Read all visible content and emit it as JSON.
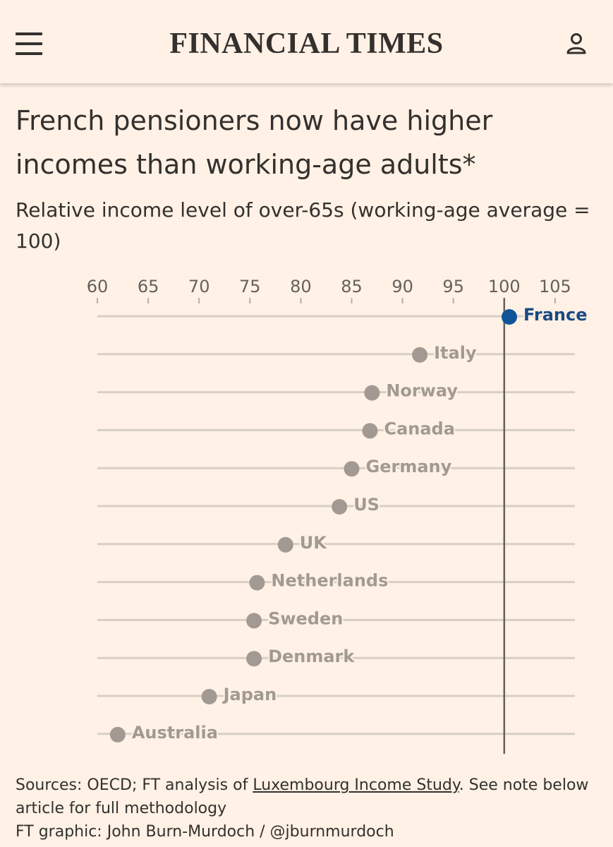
{
  "header": {
    "masthead": "FINANCIAL TIMES",
    "menu_icon": "hamburger-menu-icon",
    "account_icon": "user-account-icon"
  },
  "headline": "French pensioners now have higher incomes than working-age adults*",
  "subtitle": "Relative income level of over-65s (working-age average = 100)",
  "chart_data": {
    "type": "scatter",
    "title": "French pensioners now have higher incomes than working-age adults*",
    "subtitle": "Relative income level of over-65s (working-age average = 100)",
    "x_ticks": [
      60,
      65,
      70,
      75,
      80,
      85,
      90,
      95,
      100,
      105
    ],
    "xlim": [
      60,
      107
    ],
    "reference_line": 100,
    "grid": true,
    "highlight_color": "#0f5499",
    "point_color": "#a29a92",
    "points": [
      {
        "label": "France",
        "value": 100.5,
        "highlight": true
      },
      {
        "label": "Italy",
        "value": 91.7
      },
      {
        "label": "Norway",
        "value": 87.0
      },
      {
        "label": "Canada",
        "value": 86.8
      },
      {
        "label": "Germany",
        "value": 85.0
      },
      {
        "label": "US",
        "value": 83.8
      },
      {
        "label": "UK",
        "value": 78.5
      },
      {
        "label": "Netherlands",
        "value": 75.7
      },
      {
        "label": "Sweden",
        "value": 75.4
      },
      {
        "label": "Denmark",
        "value": 75.4
      },
      {
        "label": "Japan",
        "value": 71.0
      },
      {
        "label": "Australia",
        "value": 62.0
      }
    ]
  },
  "footer": {
    "sources_prefix": "Sources: OECD; FT analysis of ",
    "sources_link": "Luxembourg Income Study",
    "sources_suffix": ". See note below article for full methodology",
    "credit": "FT graphic: John Burn-Murdoch / @jburnmurdoch"
  }
}
